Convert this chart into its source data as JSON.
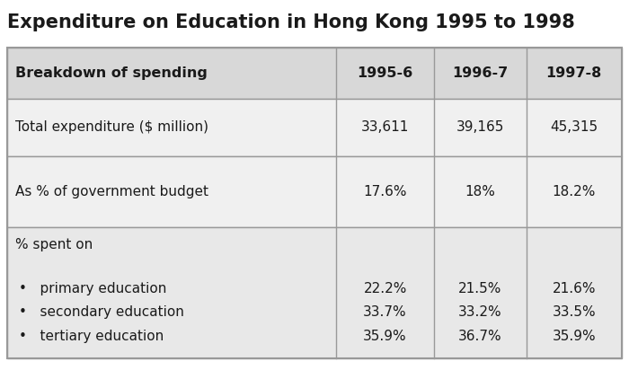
{
  "title": "Expenditure on Education in Hong Kong 1995 to 1998",
  "title_fontsize": 15,
  "title_color": "#1a1a1a",
  "background_color": "#ffffff",
  "border_color": "#999999",
  "header_bg": "#d8d8d8",
  "row1_bg": "#f0f0f0",
  "row2_bg": "#f0f0f0",
  "row3_bg": "#e8e8e8",
  "col_headers": [
    "Breakdown of spending",
    "1995-6",
    "1996-7",
    "1997-8"
  ],
  "row1_label": "Total expenditure ($ million)",
  "row1_vals": [
    "33,611",
    "39,165",
    "45,315"
  ],
  "row2_label": "As % of government budget",
  "row2_vals": [
    "17.6%",
    "18%",
    "18.2%"
  ],
  "row3_header": "% spent on",
  "bullet_labels": [
    "•   primary education",
    "•   secondary education",
    "•   tertiary education"
  ],
  "bullet_vals": [
    [
      "22.2%",
      "21.5%",
      "21.6%"
    ],
    [
      "33.7%",
      "33.2%",
      "33.5%"
    ],
    [
      "35.9%",
      "36.7%",
      "35.9%"
    ]
  ]
}
